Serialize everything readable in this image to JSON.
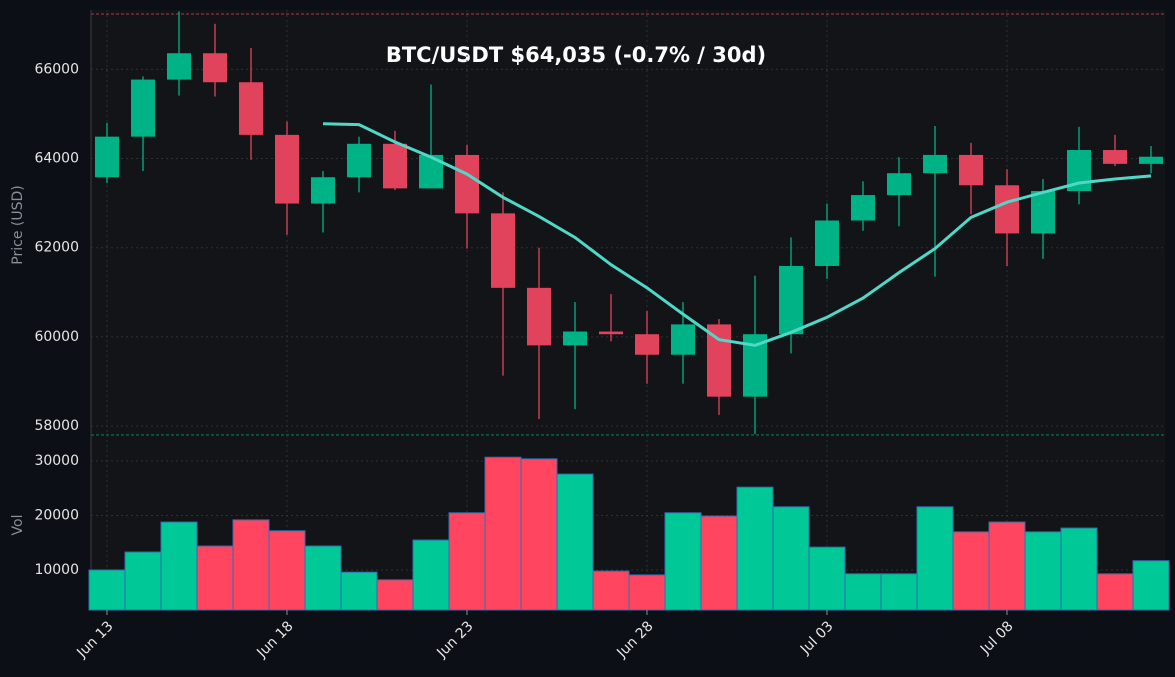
{
  "chart_data": {
    "type": "candlestick",
    "title": "BTC/USDT   $64,035   (-0.7% / 30d)",
    "y_label": "Price (USD)",
    "y2_label": "Vol",
    "categories": [
      "Jun 13",
      null,
      null,
      null,
      null,
      "Jun 18",
      null,
      null,
      null,
      null,
      "Jun 23",
      null,
      null,
      null,
      null,
      "Jun 28",
      null,
      null,
      null,
      null,
      "Jul 03",
      null,
      null,
      null,
      null,
      "Jul 08",
      null,
      null,
      null,
      null
    ],
    "open": [
      63580,
      64490,
      65770,
      66360,
      65710,
      64530,
      62990,
      63580,
      64330,
      63330,
      64080,
      62770,
      61100,
      59810,
      60120,
      60060,
      59600,
      60280,
      58660,
      60060,
      61590,
      62610,
      63180,
      63670,
      64080,
      63400,
      62320,
      63270,
      64190,
      63880
    ],
    "high": [
      64800,
      65840,
      67300,
      67020,
      66480,
      64830,
      63720,
      64490,
      64620,
      65660,
      64310,
      63240,
      62000,
      60780,
      60960,
      60580,
      60780,
      60400,
      61370,
      62230,
      62990,
      63490,
      64030,
      64730,
      64350,
      63760,
      63540,
      64710,
      64530,
      64280
    ],
    "low": [
      63450,
      63720,
      65410,
      65390,
      63970,
      62290,
      62340,
      63240,
      63290,
      63330,
      61980,
      59130,
      58160,
      58380,
      59900,
      58950,
      58950,
      58250,
      57820,
      59630,
      61300,
      62380,
      62480,
      61350,
      62750,
      61590,
      61750,
      62970,
      63830,
      63670
    ],
    "close": [
      64490,
      65770,
      66360,
      65710,
      64530,
      62990,
      63580,
      64330,
      63330,
      64080,
      62770,
      61100,
      59810,
      60120,
      60060,
      59600,
      60280,
      58660,
      60060,
      61590,
      62610,
      63180,
      63670,
      64080,
      63400,
      62320,
      63270,
      64190,
      63880,
      64040
    ],
    "up_color": "#00b386",
    "down_color": "#e2435c",
    "ma": {
      "color": "#4fd8c8",
      "values": [
        null,
        null,
        null,
        null,
        null,
        null,
        64780,
        64760,
        64370,
        64030,
        63650,
        63130,
        62700,
        62230,
        61620,
        61100,
        60510,
        59940,
        59810,
        60100,
        60440,
        60870,
        61440,
        61980,
        62680,
        63020,
        63240,
        63450,
        63540,
        63610
      ]
    },
    "volume": {
      "up_color": "#00c896",
      "down_color": "#ff4560",
      "values": [
        10000,
        13300,
        18800,
        14400,
        19200,
        17200,
        14400,
        9600,
        8200,
        15500,
        20500,
        30700,
        30400,
        27600,
        9800,
        9100,
        20500,
        19900,
        25200,
        21600,
        14200,
        9300,
        9300,
        21600,
        17000,
        18800,
        17000,
        17700,
        9300,
        11700
      ]
    },
    "ylim": [
      57800,
      67330
    ],
    "yticks": [
      58000,
      60000,
      62000,
      64000,
      66000
    ],
    "y2lim": [
      2660,
      34590
    ],
    "y2ticks": [
      10000,
      20000,
      30000
    ],
    "grid": true
  }
}
